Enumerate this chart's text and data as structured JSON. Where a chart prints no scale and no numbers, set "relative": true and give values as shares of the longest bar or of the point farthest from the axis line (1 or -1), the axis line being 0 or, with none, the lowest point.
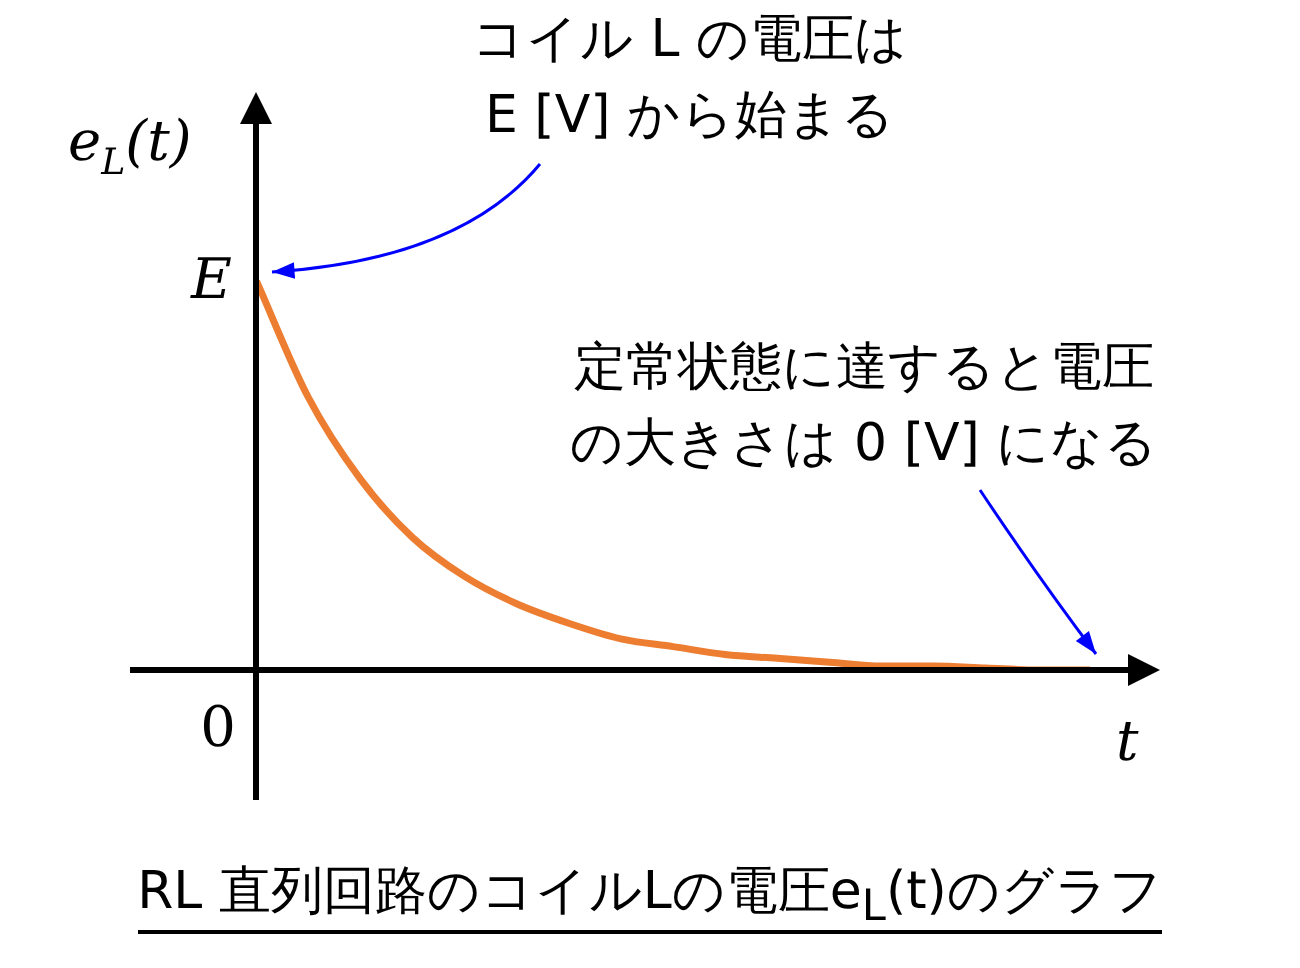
{
  "chart_data": {
    "type": "line",
    "relative": true,
    "title": "RL 直列回路のコイルLの電圧e$_{L}$(t)のグラフ",
    "xlabel": "t",
    "ylabel": "e$_{L}$(t)",
    "categories": [
      null,
      null,
      null,
      null,
      null,
      null,
      null,
      null,
      null,
      null,
      null,
      null,
      null,
      null,
      null,
      null,
      null
    ],
    "series": [
      {
        "color": "#ed7d31",
        "values": [
          1,
          0.7,
          0.49,
          0.34,
          0.24,
          0.17,
          0.12,
          0.08,
          0.06,
          0.04,
          0.03,
          0.02,
          0.01,
          0.01,
          0.005,
          0,
          0
        ]
      }
    ],
    "annotations": [
      "E",
      "0",
      "コイル L の電圧はE [V] から始まる",
      "定常状態に達すると電圧の大きさは 0 [V] になる"
    ],
    "legend": false,
    "marker": "none",
    "line_style": "solid"
  }
}
